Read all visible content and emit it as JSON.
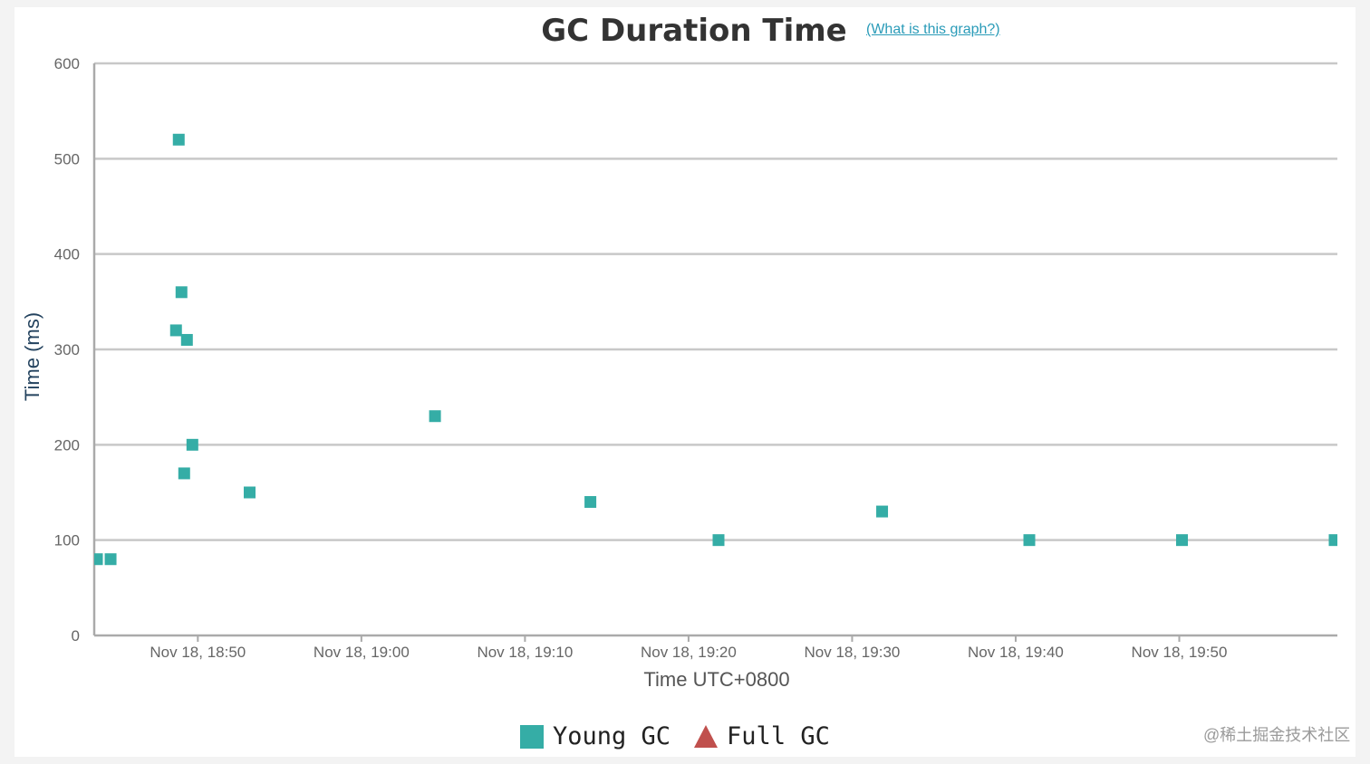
{
  "colors": {
    "young_gc": "#35ada6",
    "full_gc": "#c0504d",
    "gridline": "#c8c8c8",
    "axis": "#aaaaaa",
    "link": "#2a9bb8"
  },
  "header": {
    "help_link": "(What is this graph?)"
  },
  "legend": {
    "items": [
      {
        "label": "Young GC",
        "shape": "square",
        "color": "#35ada6"
      },
      {
        "label": "Full GC",
        "shape": "triangle",
        "color": "#c0504d"
      }
    ]
  },
  "watermark": "@稀土掘金技术社区",
  "chart_data": {
    "type": "scatter",
    "title": "GC Duration Time",
    "xlabel": "Time UTC+0800",
    "ylabel": "Time (ms)",
    "x_unit": "datetime",
    "xlim": [
      "Nov 18, 18:43:40",
      "Nov 18, 19:59:40"
    ],
    "ylim": [
      0,
      600
    ],
    "y_ticks": [
      0,
      100,
      200,
      300,
      400,
      500,
      600
    ],
    "x_ticks": [
      "Nov 18, 18:50",
      "Nov 18, 19:00",
      "Nov 18, 19:10",
      "Nov 18, 19:20",
      "Nov 18, 19:30",
      "Nov 18, 19:40",
      "Nov 18, 19:50"
    ],
    "grid": true,
    "legend_position": "bottom-center",
    "series": [
      {
        "name": "Young GC",
        "marker": "square",
        "points": [
          {
            "x": "Nov 18, 18:43:50",
            "y": 80
          },
          {
            "x": "Nov 18, 18:44:40",
            "y": 80
          },
          {
            "x": "Nov 18, 18:48:40",
            "y": 320
          },
          {
            "x": "Nov 18, 18:48:50",
            "y": 520
          },
          {
            "x": "Nov 18, 18:49:00",
            "y": 360
          },
          {
            "x": "Nov 18, 18:49:10",
            "y": 170
          },
          {
            "x": "Nov 18, 18:49:20",
            "y": 310
          },
          {
            "x": "Nov 18, 18:49:40",
            "y": 200
          },
          {
            "x": "Nov 18, 18:53:10",
            "y": 150
          },
          {
            "x": "Nov 18, 19:04:30",
            "y": 230
          },
          {
            "x": "Nov 18, 19:14:00",
            "y": 140
          },
          {
            "x": "Nov 18, 19:21:50",
            "y": 100
          },
          {
            "x": "Nov 18, 19:31:50",
            "y": 130
          },
          {
            "x": "Nov 18, 19:40:50",
            "y": 100
          },
          {
            "x": "Nov 18, 19:50:10",
            "y": 100
          },
          {
            "x": "Nov 18, 19:59:30",
            "y": 100
          }
        ]
      },
      {
        "name": "Full GC",
        "marker": "triangle",
        "points": []
      }
    ]
  }
}
